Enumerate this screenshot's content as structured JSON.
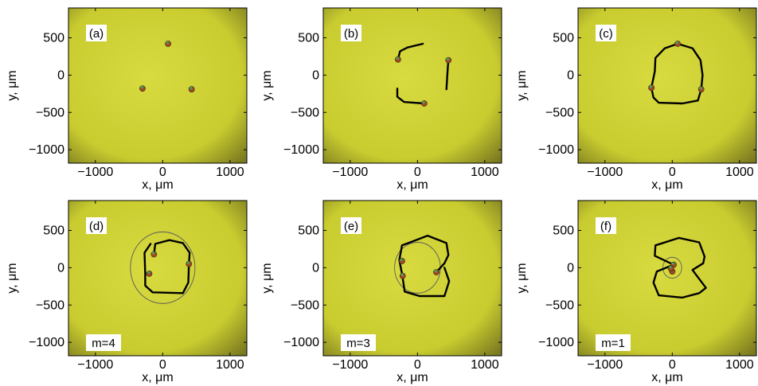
{
  "figure": {
    "panel_labels": [
      "(a)",
      "(b)",
      "(c)",
      "(d)",
      "(e)",
      "(f)"
    ],
    "m_labels": [
      "",
      "",
      "",
      "m=4",
      "m=3",
      "m=1"
    ]
  },
  "colors": {
    "background_center": "#d6d93a",
    "background_edge": "#8a8a1e",
    "trajectory": "#000000",
    "circle": "#5a5a5a",
    "particle": "#a24a23",
    "particle_highlight": "#3aa86a"
  },
  "chart_data": [
    {
      "type": "scatter",
      "panel": "(a)",
      "xlabel": "x, μm",
      "ylabel": "y, μm",
      "xlim": [
        -1400,
        1250
      ],
      "ylim": [
        -1180,
        900
      ],
      "xticks": [
        -1000,
        0,
        1000
      ],
      "xtick_labels": [
        "−1000",
        "0",
        "1000"
      ],
      "yticks": [
        500,
        0,
        -500,
        -1000
      ],
      "ytick_labels": [
        "500",
        "0",
        "−500",
        "−1000"
      ],
      "particles": [
        [
          80,
          420
        ],
        [
          -300,
          -180
        ],
        [
          430,
          -190
        ]
      ],
      "trajectory": [],
      "circle_radius": null
    },
    {
      "type": "scatter",
      "panel": "(b)",
      "xlabel": "x, μm",
      "ylabel": "y, μm",
      "xlim": [
        -1400,
        1250
      ],
      "ylim": [
        -1180,
        900
      ],
      "xticks": [
        -1000,
        0,
        1000
      ],
      "xtick_labels": [
        "−1000",
        "0",
        "1000"
      ],
      "yticks": [
        500,
        0,
        -500,
        -1000
      ],
      "ytick_labels": [
        "500",
        "0",
        "−500",
        "−1000"
      ],
      "particles": [
        [
          -290,
          210
        ],
        [
          460,
          200
        ],
        [
          100,
          -380
        ]
      ],
      "trajectory_segments": [
        [
          [
            -290,
            210
          ],
          [
            -260,
            320
          ],
          [
            -150,
            370
          ],
          [
            80,
            420
          ]
        ],
        [
          [
            460,
            200
          ],
          [
            450,
            100
          ],
          [
            430,
            -190
          ]
        ],
        [
          [
            100,
            -380
          ],
          [
            -200,
            -360
          ],
          [
            -300,
            -290
          ],
          [
            -300,
            -180
          ]
        ]
      ],
      "circle_radius": null
    },
    {
      "type": "scatter",
      "panel": "(c)",
      "xlabel": "x, μm",
      "ylabel": "y, μm",
      "xlim": [
        -1400,
        1250
      ],
      "ylim": [
        -1180,
        900
      ],
      "xticks": [
        -1000,
        0,
        1000
      ],
      "xtick_labels": [
        "−1000",
        "0",
        "1000"
      ],
      "yticks": [
        500,
        0,
        -500,
        -1000
      ],
      "ytick_labels": [
        "500",
        "0",
        "−500",
        "−1000"
      ],
      "particles": [
        [
          80,
          420
        ],
        [
          -310,
          -170
        ],
        [
          430,
          -190
        ]
      ],
      "trajectory_segments": [
        [
          [
            80,
            420
          ],
          [
            300,
            360
          ],
          [
            420,
            200
          ],
          [
            450,
            0
          ],
          [
            430,
            -190
          ],
          [
            380,
            -340
          ],
          [
            150,
            -380
          ],
          [
            -200,
            -370
          ],
          [
            -280,
            -300
          ],
          [
            -310,
            -170
          ],
          [
            -260,
            50
          ],
          [
            -250,
            230
          ],
          [
            -110,
            360
          ],
          [
            80,
            420
          ]
        ]
      ],
      "circle_radius": null
    },
    {
      "type": "scatter",
      "panel": "(d)",
      "xlabel": "x, μm",
      "ylabel": "y, μm",
      "xlim": [
        -1400,
        1250
      ],
      "ylim": [
        -1180,
        900
      ],
      "xticks": [
        -1000,
        0,
        1000
      ],
      "xtick_labels": [
        "−1000",
        "0",
        "1000"
      ],
      "yticks": [
        500,
        0,
        -500,
        -1000
      ],
      "ytick_labels": [
        "500",
        "0",
        "−500",
        "−1000"
      ],
      "particles": [
        [
          -130,
          180
        ],
        [
          390,
          50
        ],
        [
          -200,
          -80
        ]
      ],
      "trajectory_segments": [
        [
          [
            -130,
            180
          ],
          [
            -110,
            320
          ],
          [
            100,
            370
          ],
          [
            300,
            330
          ],
          [
            400,
            200
          ],
          [
            390,
            50
          ],
          [
            380,
            -200
          ],
          [
            300,
            -340
          ],
          [
            -150,
            -330
          ],
          [
            -260,
            -240
          ],
          [
            -260,
            -80
          ],
          [
            -270,
            200
          ],
          [
            -180,
            320
          ]
        ]
      ],
      "circle_radius": 480
    },
    {
      "type": "scatter",
      "panel": "(e)",
      "xlabel": "x, μm",
      "ylabel": "y, μm",
      "xlim": [
        -1400,
        1250
      ],
      "ylim": [
        -1180,
        900
      ],
      "xticks": [
        -1000,
        0,
        1000
      ],
      "xtick_labels": [
        "−1000",
        "0",
        "1000"
      ],
      "yticks": [
        500,
        0,
        -500,
        -1000
      ],
      "ytick_labels": [
        "500",
        "0",
        "−500",
        "−1000"
      ],
      "particles": [
        [
          -230,
          90
        ],
        [
          280,
          -60
        ],
        [
          -220,
          -110
        ]
      ],
      "trajectory_segments": [
        [
          [
            280,
            -60
          ],
          [
            400,
            60
          ],
          [
            460,
            170
          ],
          [
            430,
            330
          ],
          [
            150,
            430
          ],
          [
            -50,
            360
          ],
          [
            -230,
            300
          ],
          [
            -270,
            100
          ],
          [
            -230,
            -80
          ],
          [
            -190,
            -320
          ],
          [
            30,
            -380
          ],
          [
            400,
            -380
          ],
          [
            470,
            -180
          ],
          [
            400,
            0
          ]
        ]
      ],
      "circle_radius": 340
    },
    {
      "type": "scatter",
      "panel": "(f)",
      "xlabel": "x, μm",
      "ylabel": "y, μm",
      "xlim": [
        -1400,
        1250
      ],
      "ylim": [
        -1180,
        900
      ],
      "xticks": [
        -1000,
        0,
        1000
      ],
      "xtick_labels": [
        "−1000",
        "0",
        "1000"
      ],
      "yticks": [
        500,
        0,
        -500,
        -1000
      ],
      "ytick_labels": [
        "500",
        "0",
        "−500",
        "−1000"
      ],
      "particles": [
        [
          20,
          40
        ],
        [
          0,
          -50
        ],
        [
          -20,
          -10
        ]
      ],
      "trajectory_segments": [
        [
          [
            -250,
            300
          ],
          [
            100,
            400
          ],
          [
            400,
            340
          ],
          [
            480,
            150
          ],
          [
            460,
            60
          ],
          [
            300,
            -30
          ],
          [
            500,
            -270
          ],
          [
            400,
            -340
          ],
          [
            150,
            -400
          ],
          [
            -200,
            -370
          ],
          [
            -280,
            -200
          ],
          [
            -230,
            -50
          ],
          [
            20,
            40
          ],
          [
            -260,
            160
          ],
          [
            -250,
            300
          ]
        ]
      ],
      "circle_radius": 140
    }
  ]
}
